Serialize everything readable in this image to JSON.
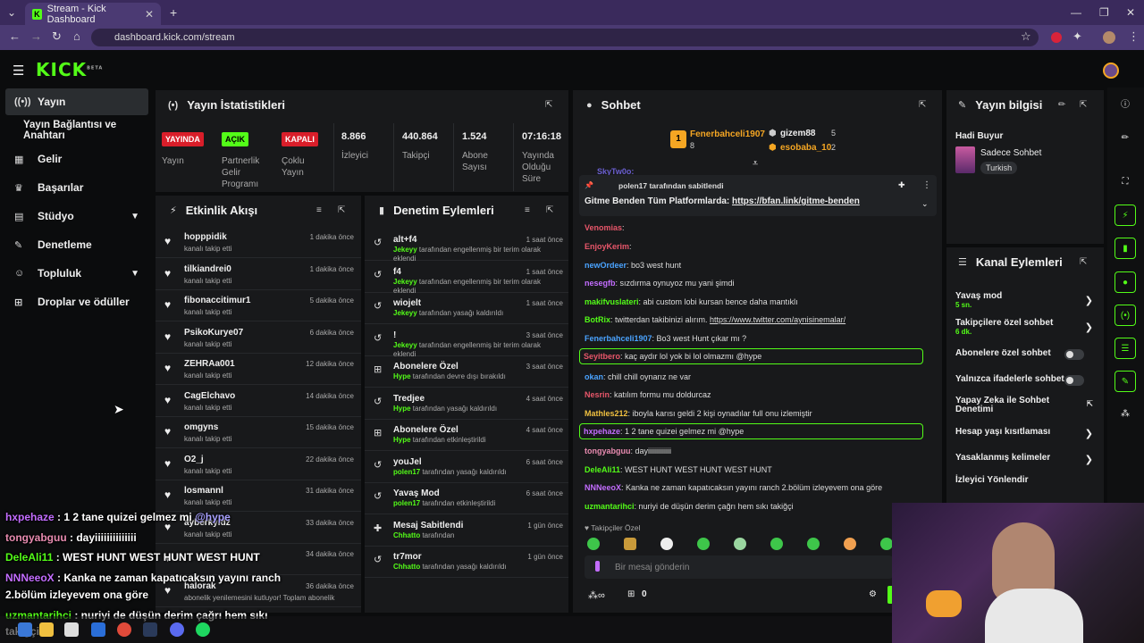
{
  "browser": {
    "tab_title": "Stream - Kick Dashboard",
    "tab_close": "✕",
    "new_tab": "+",
    "url": "dashboard.kick.com/stream"
  },
  "logo": "KICK",
  "logo_sup": "BETA",
  "sidebar": {
    "items": [
      {
        "label": "Yayın",
        "icon": "broadcast-icon"
      },
      {
        "label": "Yayın Bağlantısı ve Anahtarı"
      },
      {
        "label": "Gelir",
        "icon": "chart-icon"
      },
      {
        "label": "Başarılar",
        "icon": "trophy-icon"
      },
      {
        "label": "Stüdyo",
        "icon": "studio-icon"
      },
      {
        "label": "Denetleme",
        "icon": "wrench-icon"
      },
      {
        "label": "Topluluk",
        "icon": "community-icon"
      },
      {
        "label": "Droplar ve ödüller",
        "icon": "gift-icon"
      }
    ]
  },
  "stats": {
    "title": "Yayın İstatistikleri",
    "items": [
      {
        "badge": "YAYINDA",
        "label": "Yayın",
        "color": "#d91e2a"
      },
      {
        "badge": "AÇIK",
        "label": "Partnerlik Gelir Programı",
        "color": "#53fc18"
      },
      {
        "badge": "KAPALI",
        "label": "Çoklu Yayın",
        "color": "#d91e2a"
      },
      {
        "value": "8.866",
        "label": "İzleyici"
      },
      {
        "value": "440.864",
        "label": "Takipçi"
      },
      {
        "value": "1.524",
        "label": "Abone Sayısı"
      },
      {
        "value": "07:16:18",
        "label": "Yayında Olduğu Süre"
      }
    ]
  },
  "activity": {
    "title": "Etkinlik Akışı",
    "rows": [
      {
        "name": "hopppidik",
        "sub": "kanalı takip etti",
        "time": "1 dakika önce"
      },
      {
        "name": "tilkiandrei0",
        "sub": "kanalı takip etti",
        "time": "1 dakika önce"
      },
      {
        "name": "fibonaccitimur1",
        "sub": "kanalı takip etti",
        "time": "5 dakika önce"
      },
      {
        "name": "PsikoKurye07",
        "sub": "kanalı takip etti",
        "time": "6 dakika önce"
      },
      {
        "name": "ZEHRAa001",
        "sub": "kanalı takip etti",
        "time": "12 dakika önce"
      },
      {
        "name": "CagElchavo",
        "sub": "kanalı takip etti",
        "time": "14 dakika önce"
      },
      {
        "name": "omgyns",
        "sub": "kanalı takip etti",
        "time": "15 dakika önce"
      },
      {
        "name": "O2_j",
        "sub": "kanalı takip etti",
        "time": "22 dakika önce"
      },
      {
        "name": "losmannl",
        "sub": "kanalı takip etti",
        "time": "31 dakika önce"
      },
      {
        "name": "ayberkyldz",
        "sub": "kanalı takip etti",
        "time": "33 dakika önce"
      },
      {
        "name": "",
        "sub": "",
        "time": "34 dakika önce"
      },
      {
        "name": "halorak",
        "sub": "abonelik yenilemesini kutluyor! Toplam abonelik",
        "time": "36 dakika önce"
      }
    ]
  },
  "moderation": {
    "title": "Denetim Eylemleri",
    "rows": [
      {
        "name": "alt+f4",
        "by": "Jekeyy",
        "sub": " tarafından engellenmiş bir terim olarak eklendi",
        "time": "1 saat önce",
        "icon": "history-icon"
      },
      {
        "name": "f4",
        "by": "Jekeyy",
        "sub": " tarafından engellenmiş bir terim olarak eklendi",
        "time": "1 saat önce",
        "icon": "history-icon"
      },
      {
        "name": "wiojelt",
        "by": "Jekeyy",
        "sub": " tarafından yasağı kaldırıldı",
        "time": "1 saat önce",
        "icon": "history-icon"
      },
      {
        "name": "!",
        "by": "Jekeyy",
        "sub": " tarafından engellenmiş bir terim olarak eklendi",
        "time": "3 saat önce",
        "icon": "history-icon"
      },
      {
        "name": "Abonelere Özel",
        "by": "Hype",
        "sub": " tarafından devre dışı bırakıldı",
        "time": "3 saat önce",
        "icon": "gift-icon"
      },
      {
        "name": "Tredjee",
        "by": "Hype",
        "sub": " tarafından yasağı kaldırıldı",
        "time": "4 saat önce",
        "icon": "history-icon"
      },
      {
        "name": "Abonelere Özel",
        "by": "Hype",
        "sub": " tarafından etkinleştirildi",
        "time": "4 saat önce",
        "icon": "gift-icon"
      },
      {
        "name": "youJel",
        "by": "polen17",
        "sub": " tarafından yasağı kaldırıldı",
        "time": "6 saat önce",
        "icon": "history-icon"
      },
      {
        "name": "Yavaş Mod",
        "by": "polen17",
        "sub": " tarafından etkinleştirildi",
        "time": "6 saat önce",
        "icon": "history-icon"
      },
      {
        "name": "Mesaj Sabitlendi",
        "by": "Chhatto",
        "sub": " tarafından",
        "time": "1 gün önce",
        "icon": "pin-icon"
      },
      {
        "name": "tr7mor",
        "by": "Chhatto",
        "sub": " tarafından yasağı kaldırıldı",
        "time": "1 gün önce",
        "icon": "history-icon"
      }
    ]
  },
  "chat": {
    "title": "Sohbet",
    "top_gifters": [
      {
        "name": "Fenerbahceli1907",
        "count": "8",
        "color": "#f5a623"
      },
      {
        "name": "gizem88",
        "count": "5",
        "color": "#eeeeee"
      },
      {
        "name": "esobaba_10",
        "count": "2",
        "color": "#f5a623"
      }
    ],
    "partial_top": "SkyTw0o:",
    "pinned_by": "polen17 tarafından sabitlendi",
    "pinned_text": "Gitme Benden Tüm Platformlarda: ",
    "pinned_link": "https://bfan.link/gitme-benden",
    "messages": [
      {
        "user": "Venomias",
        "text": ":",
        "color": "#e8566a"
      },
      {
        "user": "EnjoyKerim",
        "text": ":",
        "color": "#e8566a"
      },
      {
        "user": "newOrdeer",
        "text": ": bo3 west hunt",
        "color": "#4aa3ff"
      },
      {
        "user": "nesegfb",
        "text": ": sızdırma oynuyoz mu yani şimdi",
        "color": "#c36dff"
      },
      {
        "user": "makifvuslateri",
        "text": ": abi custom lobi kursan bence daha mantıklı",
        "color": "#53fc18"
      },
      {
        "user": "BotRix",
        "text": ": twitterdan takibinizi alırım. ",
        "link": "https://www.twitter.com/aynisinemalar/",
        "color": "#53fc18"
      },
      {
        "user": "Fenerbahceli1907",
        "text": ": Bo3 west Hunt çıkar mı ?",
        "color": "#4aa3ff"
      },
      {
        "user": "Seyitbero",
        "text": ": kaç aydır lol yok bi lol olmazmı @hype",
        "color": "#e8566a",
        "highlight": true
      },
      {
        "user": "okan",
        "text": ": chill chill oynarız ne var",
        "color": "#4aa3ff"
      },
      {
        "user": "Nesrin",
        "text": ": katılım formu mu doldurcaz",
        "color": "#e8566a"
      },
      {
        "user": "Mathles212",
        "text": ": iboyla karısı geldi 2 kişi oynadılar full onu izlemiştir",
        "color": "#f0c040"
      },
      {
        "user": "hxpehaze",
        "text": ": 1 2 tane quizei gelmez mi @hype",
        "color": "#c36dff",
        "highlight": true
      },
      {
        "user": "tongyabguu",
        "text": ": dayiiiiiiiiiiiii",
        "color": "#e88bb0"
      },
      {
        "user": "DeleAli11",
        "text": ": WEST HUNT WEST HUNT WEST HUNT",
        "color": "#53fc18"
      },
      {
        "user": "NNNeeoX",
        "text": ": Kanka ne zaman kapatıcaksın yayını ranch 2.bölüm izleyevem ona göre",
        "color": "#c36dff"
      },
      {
        "user": "uzmantarihci",
        "text": ": nuriyi de düşün derim çağrı hem sıkı takiğçi",
        "color": "#53fc18"
      }
    ],
    "followers_only": "Takipçiler Özel",
    "input_placeholder": "Bir mesaj gönderin",
    "points": "0"
  },
  "stream_info": {
    "title": "Yayın bilgisi",
    "stream_title": "Hadi Buyur",
    "category": "Sadece Sohbet",
    "tag": "Turkish"
  },
  "channel_actions": {
    "title": "Kanal Eylemleri",
    "rows": [
      {
        "label": "Yavaş mod",
        "sub": "5 sn.",
        "type": "chevron"
      },
      {
        "label": "Takipçilere özel sohbet",
        "sub": "6 dk.",
        "type": "chevron"
      },
      {
        "label": "Abonelere özel sohbet",
        "type": "toggle"
      },
      {
        "label": "Yalnızca ifadelerle sohbet",
        "type": "toggle"
      },
      {
        "label": "Yapay Zeka ile Sohbet Denetimi",
        "type": "external"
      },
      {
        "label": "Hesap yaşı kısıtlaması",
        "type": "chevron"
      },
      {
        "label": "Yasaklanmış kelimeler",
        "type": "chevron"
      },
      {
        "label": "İzleyici Yönlendir",
        "type": "none"
      }
    ]
  },
  "overlay_chat": [
    {
      "user": "hxpehaze",
      "text": " : 1 2 tane quizei gelmez mi ",
      "mention": "@hype",
      "color": "#c36dff"
    },
    {
      "user": "tongyabguu",
      "text": " : dayiiiiiiiiiiiiii",
      "color": "#e88bb0"
    },
    {
      "user": "DeleAli11",
      "text": " : WEST HUNT WEST HUNT WEST HUNT",
      "color": "#53fc18"
    },
    {
      "user": "NNNeeoX",
      "text": " : Kanka ne zaman kapatıcaksın yayını ranch",
      "color": "#c36dff"
    },
    {
      "user": "",
      "text": "2.bölüm izleyevem ona göre",
      "color": "#ffffff"
    },
    {
      "user": "uzmantarihci",
      "text": " : nuriyi de düşün derim çağrı hem sıkı",
      "color": "#53fc18"
    },
    {
      "user": "",
      "text": "takiğçi",
      "color": "#ffffff"
    }
  ]
}
